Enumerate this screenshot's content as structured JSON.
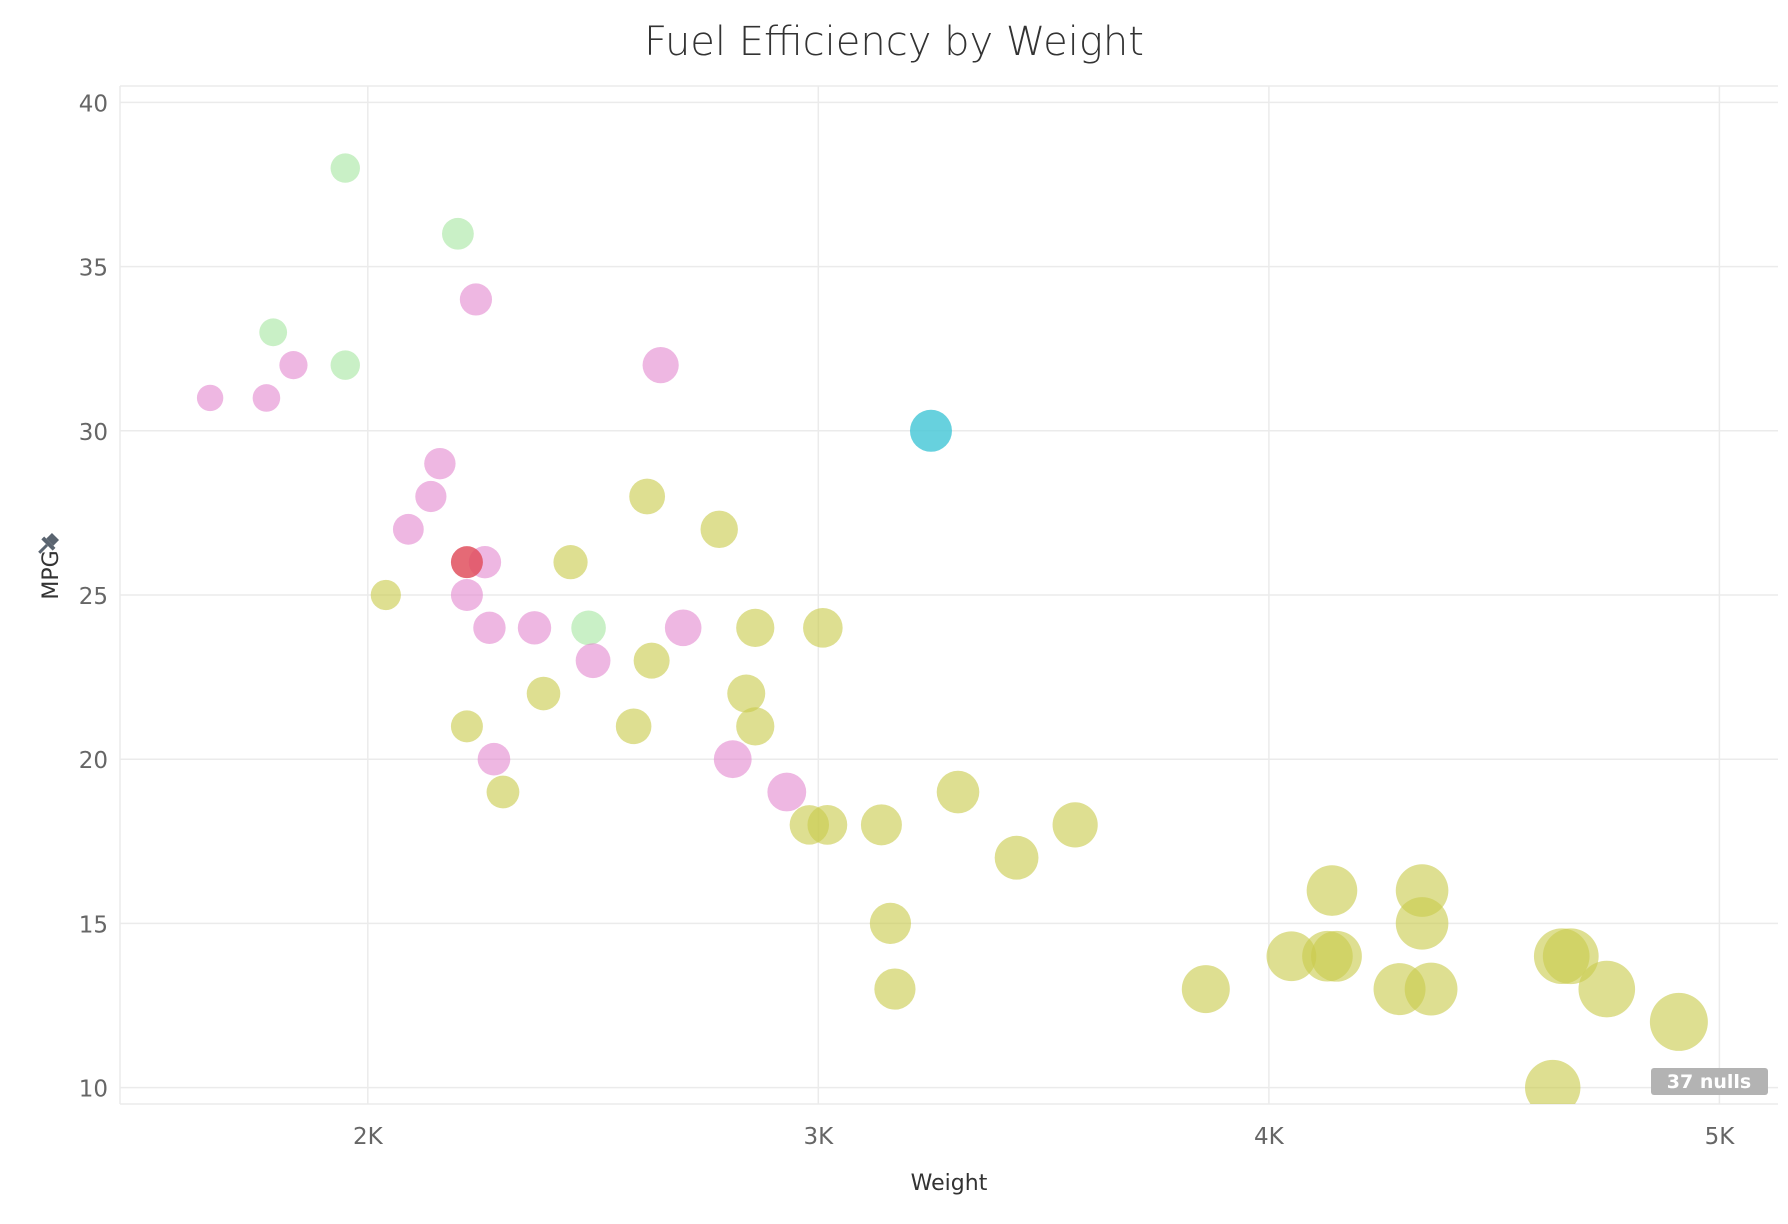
{
  "chart_data": {
    "type": "scatter",
    "title": "Fuel Efficiency by Weight",
    "xlabel": "Weight",
    "ylabel": "MPG",
    "xlim": [
      1450,
      5130
    ],
    "ylim": [
      9.5,
      40.5
    ],
    "x_ticks": [
      2000,
      3000,
      4000,
      5000
    ],
    "x_tick_labels": [
      "2K",
      "3K",
      "4K",
      "5K"
    ],
    "y_ticks": [
      10,
      15,
      20,
      25,
      30,
      35,
      40
    ],
    "y_tick_labels": [
      "10",
      "15",
      "20",
      "25",
      "30",
      "35",
      "40"
    ],
    "grid": true,
    "nulls_label": "37 nulls",
    "colors": {
      "olive": "#c9cc4e",
      "pink": "#e48ad0",
      "green": "#a8e6a3",
      "cyan": "#4cc9d8",
      "red": "#e0505e"
    },
    "points": [
      {
        "x": 1950,
        "y": 38,
        "c": "green"
      },
      {
        "x": 2200,
        "y": 36,
        "c": "green"
      },
      {
        "x": 1790,
        "y": 33,
        "c": "green"
      },
      {
        "x": 1950,
        "y": 32,
        "c": "green"
      },
      {
        "x": 2490,
        "y": 24,
        "c": "green"
      },
      {
        "x": 1650,
        "y": 31,
        "c": "pink"
      },
      {
        "x": 1775,
        "y": 31,
        "c": "pink"
      },
      {
        "x": 1835,
        "y": 32,
        "c": "pink"
      },
      {
        "x": 2240,
        "y": 34,
        "c": "pink"
      },
      {
        "x": 2650,
        "y": 32,
        "c": "pink"
      },
      {
        "x": 2160,
        "y": 29,
        "c": "pink"
      },
      {
        "x": 2140,
        "y": 28,
        "c": "pink"
      },
      {
        "x": 2090,
        "y": 27,
        "c": "pink"
      },
      {
        "x": 2260,
        "y": 26,
        "c": "pink"
      },
      {
        "x": 2220,
        "y": 25,
        "c": "pink"
      },
      {
        "x": 2270,
        "y": 24,
        "c": "pink"
      },
      {
        "x": 2370,
        "y": 24,
        "c": "pink"
      },
      {
        "x": 2700,
        "y": 24,
        "c": "pink"
      },
      {
        "x": 2500,
        "y": 23,
        "c": "pink"
      },
      {
        "x": 2280,
        "y": 20,
        "c": "pink"
      },
      {
        "x": 2810,
        "y": 20,
        "c": "pink"
      },
      {
        "x": 2930,
        "y": 19,
        "c": "pink"
      },
      {
        "x": 2220,
        "y": 26,
        "c": "red"
      },
      {
        "x": 3250,
        "y": 30,
        "c": "cyan"
      },
      {
        "x": 2040,
        "y": 25,
        "c": "olive"
      },
      {
        "x": 2450,
        "y": 26,
        "c": "olive"
      },
      {
        "x": 2620,
        "y": 28,
        "c": "olive"
      },
      {
        "x": 2780,
        "y": 27,
        "c": "olive"
      },
      {
        "x": 2630,
        "y": 23,
        "c": "olive"
      },
      {
        "x": 2860,
        "y": 24,
        "c": "olive"
      },
      {
        "x": 3010,
        "y": 24,
        "c": "olive"
      },
      {
        "x": 2390,
        "y": 22,
        "c": "olive"
      },
      {
        "x": 2840,
        "y": 22,
        "c": "olive"
      },
      {
        "x": 2220,
        "y": 21,
        "c": "olive"
      },
      {
        "x": 2590,
        "y": 21,
        "c": "olive"
      },
      {
        "x": 2860,
        "y": 21,
        "c": "olive"
      },
      {
        "x": 2300,
        "y": 19,
        "c": "olive"
      },
      {
        "x": 2980,
        "y": 18,
        "c": "olive"
      },
      {
        "x": 3020,
        "y": 18,
        "c": "olive"
      },
      {
        "x": 3140,
        "y": 18,
        "c": "olive"
      },
      {
        "x": 3310,
        "y": 19,
        "c": "olive"
      },
      {
        "x": 3570,
        "y": 18,
        "c": "olive"
      },
      {
        "x": 3440,
        "y": 17,
        "c": "olive"
      },
      {
        "x": 3160,
        "y": 15,
        "c": "olive"
      },
      {
        "x": 3170,
        "y": 13,
        "c": "olive"
      },
      {
        "x": 3860,
        "y": 13,
        "c": "olive"
      },
      {
        "x": 4050,
        "y": 14,
        "c": "olive"
      },
      {
        "x": 4130,
        "y": 14,
        "c": "olive"
      },
      {
        "x": 4150,
        "y": 14,
        "c": "olive"
      },
      {
        "x": 4140,
        "y": 16,
        "c": "olive"
      },
      {
        "x": 4340,
        "y": 16,
        "c": "olive"
      },
      {
        "x": 4340,
        "y": 15,
        "c": "olive"
      },
      {
        "x": 4290,
        "y": 13,
        "c": "olive"
      },
      {
        "x": 4360,
        "y": 13,
        "c": "olive"
      },
      {
        "x": 4650,
        "y": 14,
        "c": "olive"
      },
      {
        "x": 4670,
        "y": 14,
        "c": "olive"
      },
      {
        "x": 4750,
        "y": 13,
        "c": "olive"
      },
      {
        "x": 4910,
        "y": 12,
        "c": "olive"
      },
      {
        "x": 4630,
        "y": 10,
        "c": "olive"
      }
    ]
  }
}
